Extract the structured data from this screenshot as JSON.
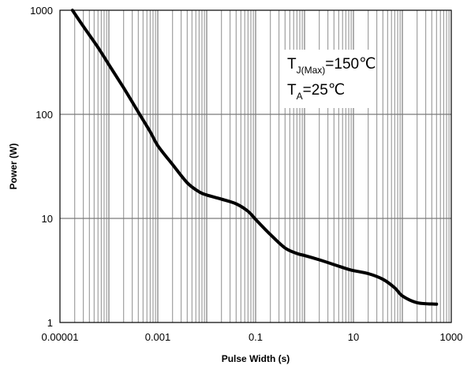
{
  "chart_data": {
    "type": "line",
    "xlabel": "Pulse Width (s)",
    "ylabel": "Power (W)",
    "x_scale": "log",
    "y_scale": "log",
    "xlim": [
      1e-05,
      1000
    ],
    "ylim": [
      1,
      1000
    ],
    "x_ticks": [
      1e-05,
      0.001,
      0.1,
      10,
      1000
    ],
    "x_tick_labels": [
      "0.00001",
      "0.001",
      "0.1",
      "10",
      "1000"
    ],
    "y_ticks": [
      1,
      10,
      100,
      1000
    ],
    "y_tick_labels": [
      "1",
      "10",
      "100",
      "1000"
    ],
    "grid": true,
    "annotations": [
      {
        "main": "T",
        "sub": "J(Max)",
        "rest": "=150℃"
      },
      {
        "main": "T",
        "sub": "A",
        "rest": "=25℃"
      }
    ],
    "series": [
      {
        "x": [
          1.8e-05,
          3e-05,
          6e-05,
          0.0001,
          0.0002,
          0.0004,
          0.0007,
          0.001,
          0.002,
          0.004,
          0.007,
          0.01,
          0.02,
          0.04,
          0.07,
          0.1,
          0.2,
          0.4,
          0.7,
          1,
          2,
          4,
          7,
          10,
          20,
          40,
          70,
          100,
          200,
          500
        ],
        "y": [
          1000,
          700,
          440,
          300,
          180,
          105,
          68,
          50,
          33,
          22,
          18,
          16.8,
          15.3,
          13.8,
          11.7,
          9.8,
          7.0,
          5.2,
          4.6,
          4.4,
          4.0,
          3.6,
          3.3,
          3.15,
          2.95,
          2.6,
          2.15,
          1.8,
          1.55,
          1.5
        ]
      }
    ]
  }
}
